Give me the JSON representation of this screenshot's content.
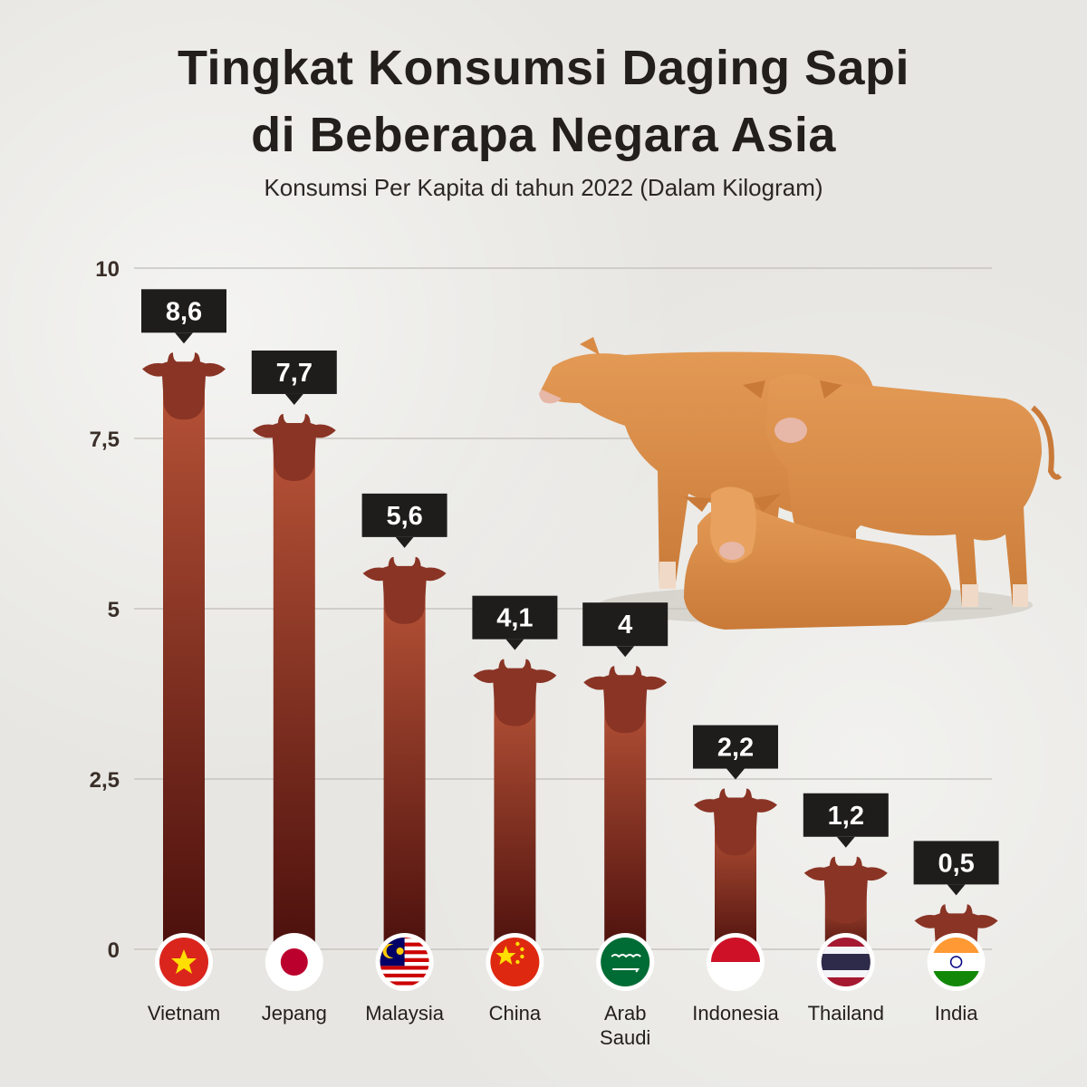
{
  "header": {
    "title_line1": "Tingkat Konsumsi Daging Sapi",
    "title_line2": "di Beberapa Negara Asia",
    "subtitle": "Konsumsi Per Kapita di tahun 2022 (Dalam Kilogram)"
  },
  "chart_data": {
    "type": "bar",
    "categories": [
      "Vietnam",
      "Jepang",
      "Malaysia",
      "China",
      "Arab Saudi",
      "Indonesia",
      "Thailand",
      "India"
    ],
    "values": [
      8.6,
      7.7,
      5.6,
      4.1,
      4,
      2.2,
      1.2,
      0.5
    ],
    "value_labels": [
      "8,6",
      "7,7",
      "5,6",
      "4,1",
      "4",
      "2,2",
      "1,2",
      "0,5"
    ],
    "ylim": [
      0,
      10
    ],
    "yticks": [
      0,
      2.5,
      5,
      7.5,
      10
    ],
    "ytick_labels": [
      "0",
      "2,5",
      "5",
      "7,5",
      "10"
    ],
    "grid": true,
    "flags": [
      "vietnam-flag",
      "japan-flag",
      "malaysia-flag",
      "china-flag",
      "saudi-arabia-flag",
      "indonesia-flag",
      "thailand-flag",
      "india-flag"
    ]
  },
  "colors": {
    "bar_top": "#b65237",
    "bar_bottom": "#4a0f0c",
    "cow_head": "#8a3425",
    "label_box": "#1f1d1c",
    "cow_body": "#d98a45"
  }
}
